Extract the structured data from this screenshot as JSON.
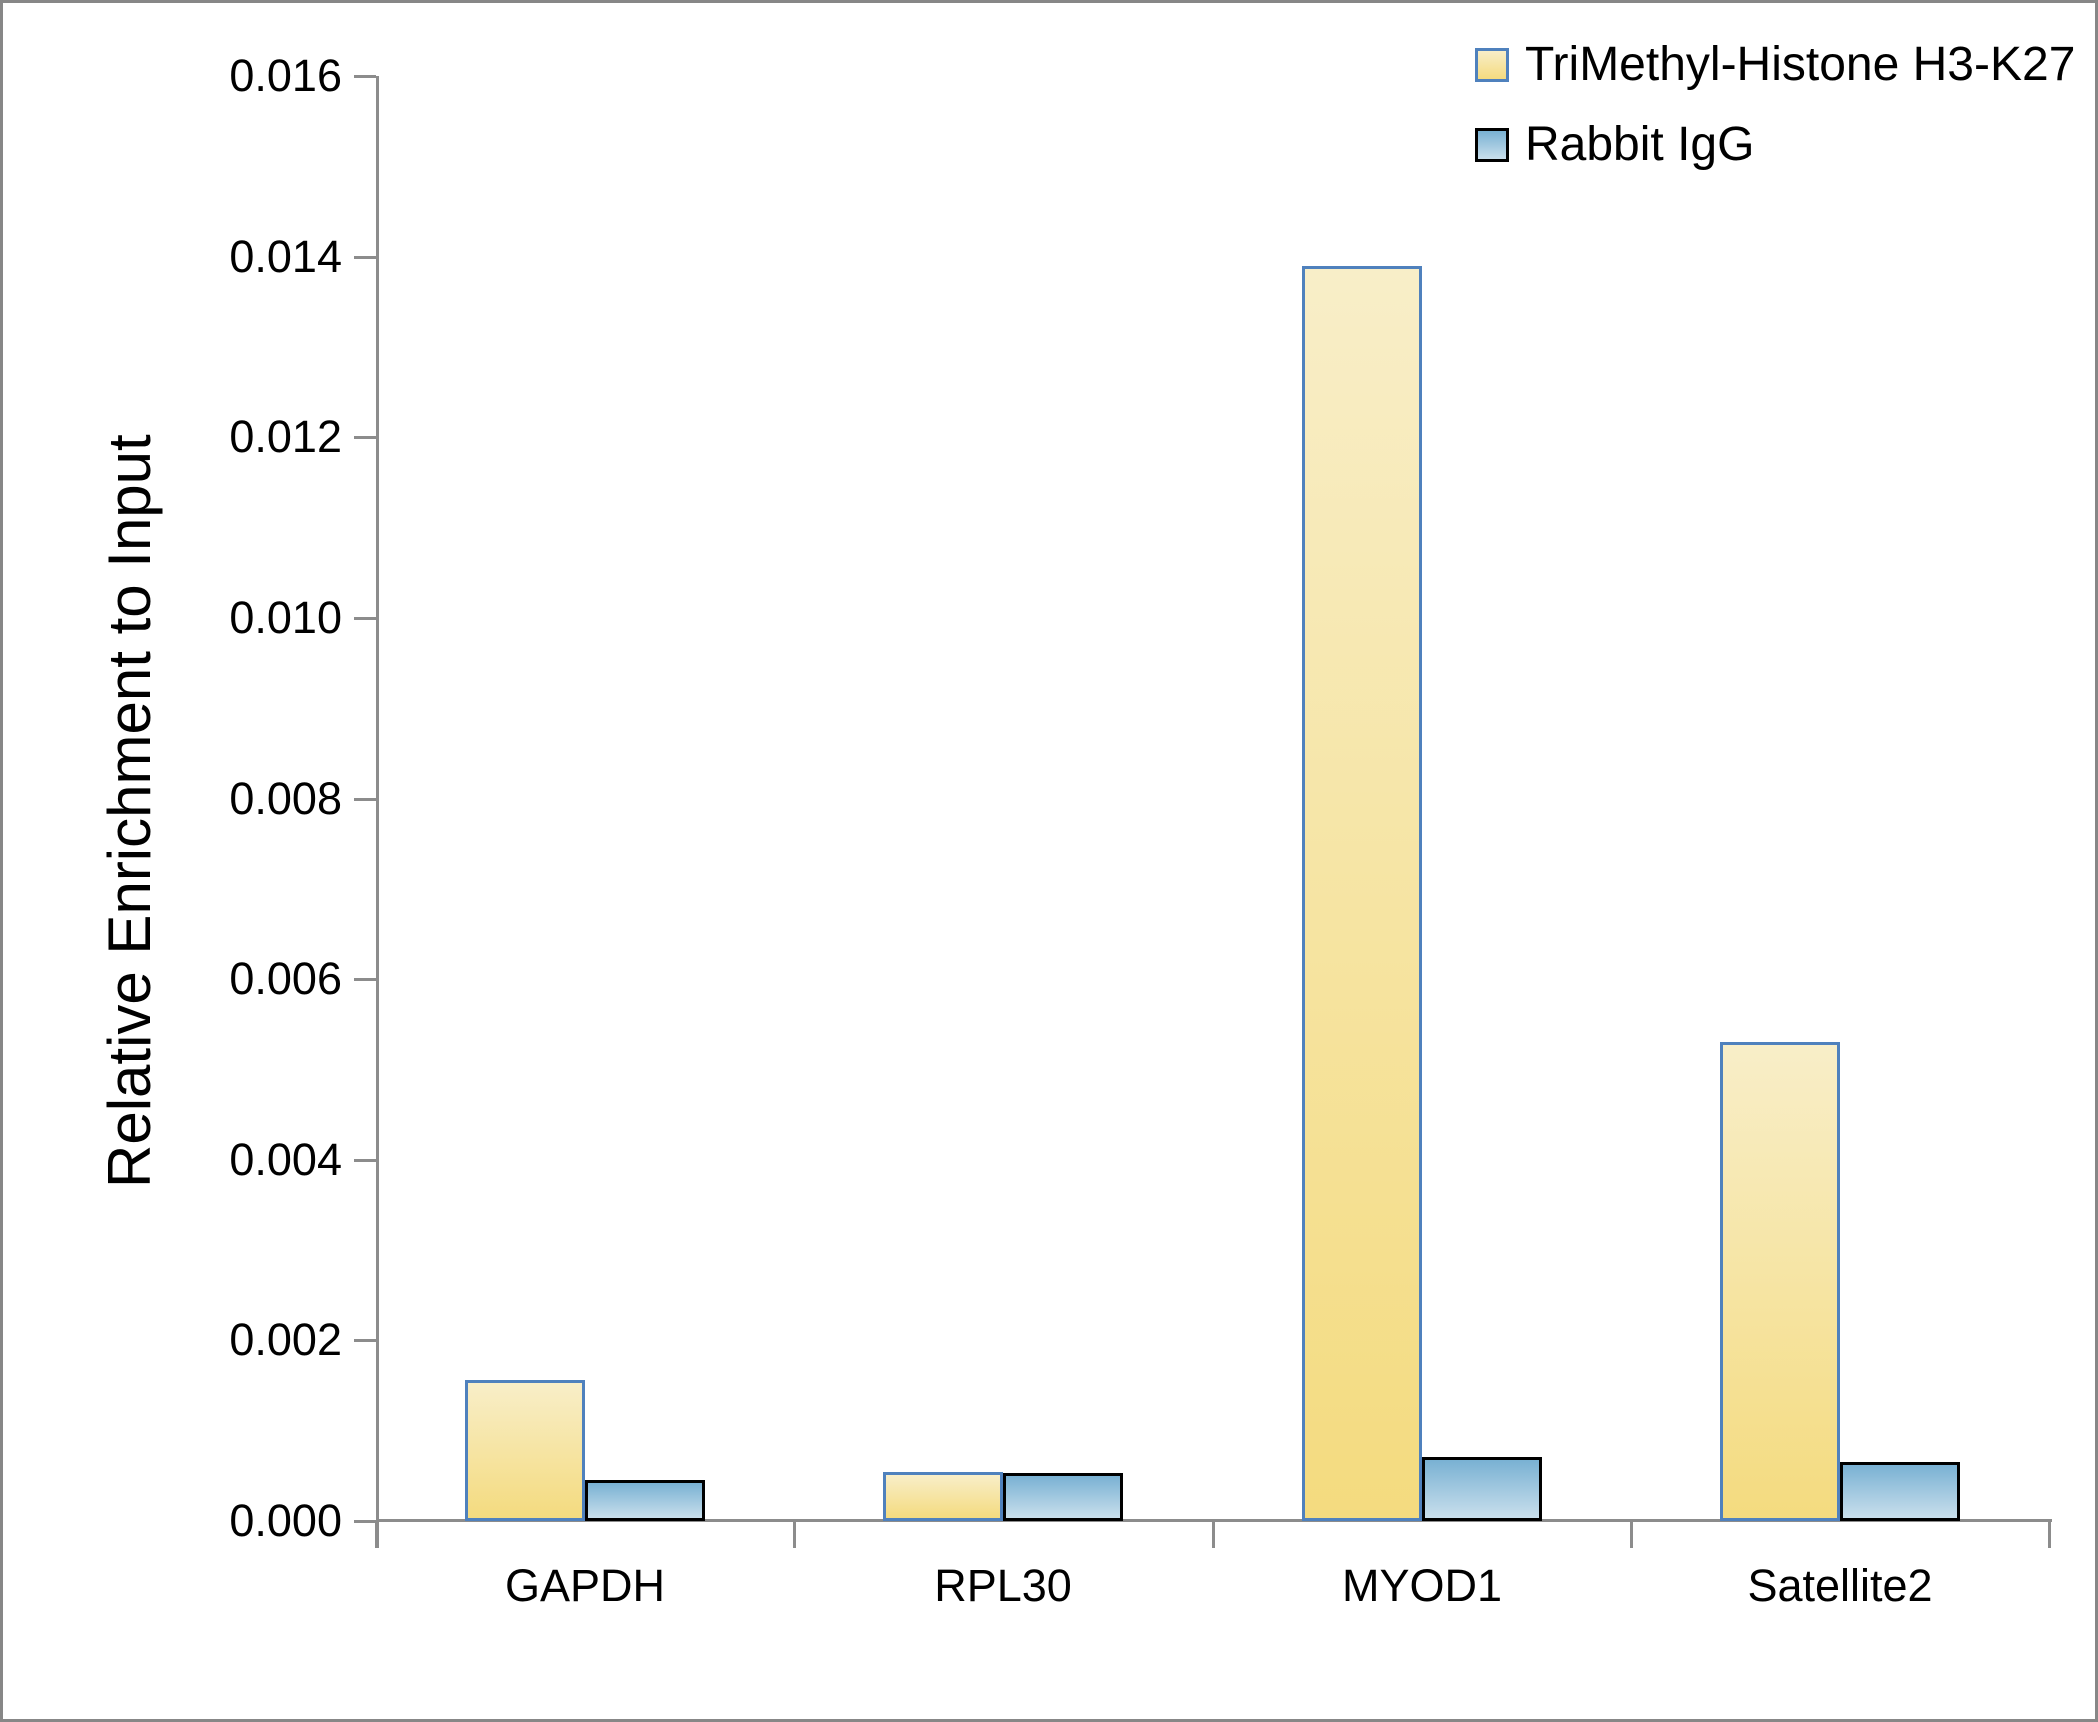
{
  "chart_data": {
    "type": "bar",
    "title": "",
    "xlabel": "",
    "ylabel": "Relative Enrichment to Input",
    "categories": [
      "GAPDH",
      "RPL30",
      "MYOD1",
      "Satellite2"
    ],
    "series": [
      {
        "name": "TriMethyl-Histone H3-K27",
        "values": [
          0.00156,
          0.00054,
          0.0139,
          0.0053
        ],
        "fill_top": "#f8eec8",
        "fill_bottom": "#f4db7f",
        "border": "#4f81bd"
      },
      {
        "name": "Rabbit IgG",
        "values": [
          0.00045,
          0.00053,
          0.00071,
          0.00065
        ],
        "fill_top": "#79b1d3",
        "fill_bottom": "#c9dfec",
        "border": "#000000"
      }
    ],
    "ylim": [
      0,
      0.016
    ],
    "ytick_step": 0.002,
    "ytick_labels": [
      "0.000",
      "0.002",
      "0.004",
      "0.006",
      "0.008",
      "0.010",
      "0.012",
      "0.014",
      "0.016"
    ],
    "grid": false,
    "legend_position": "top-right",
    "axis_color": "#8c8c8c",
    "text_color": "#000000"
  }
}
